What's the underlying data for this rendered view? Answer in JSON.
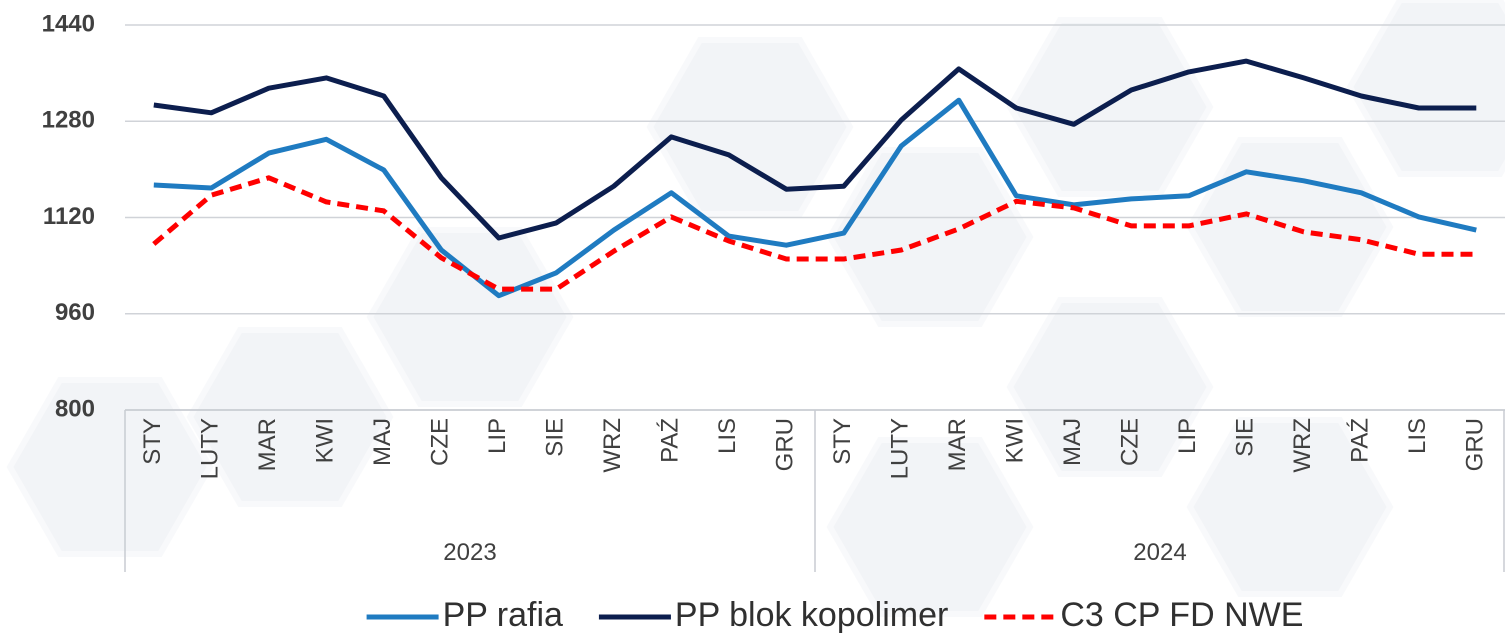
{
  "chart_data": {
    "type": "line",
    "categories": [
      "STY",
      "LUTY",
      "MAR",
      "KWI",
      "MAJ",
      "CZE",
      "LIP",
      "SIE",
      "WRZ",
      "PAŹ",
      "LIS",
      "GRU",
      "STY",
      "LUTY",
      "MAR",
      "KWI",
      "MAJ",
      "CZE",
      "LIP",
      "SIE",
      "WRZ",
      "PAŹ",
      "LIS",
      "GRU"
    ],
    "category_groups": [
      "2023",
      "2024"
    ],
    "series": [
      {
        "name": "PP rafia",
        "color": "#1f7bc1",
        "line_style": "solid",
        "values": [
          1174,
          1169,
          1227,
          1250,
          1199,
          1066,
          990,
          1028,
          1099,
          1161,
          1089,
          1074,
          1094,
          1239,
          1315,
          1156,
          1141,
          1151,
          1156,
          1196,
          1181,
          1161,
          1121,
          1099
        ]
      },
      {
        "name": "PP blok kopolimer",
        "color": "#0c1e4e",
        "line_style": "solid",
        "values": [
          1307,
          1294,
          1335,
          1352,
          1322,
          1186,
          1086,
          1111,
          1172,
          1254,
          1224,
          1167,
          1172,
          1282,
          1367,
          1302,
          1275,
          1332,
          1362,
          1380,
          1352,
          1322,
          1302,
          1302
        ]
      },
      {
        "name": "C3 CP FD NWE",
        "color": "#ff0000",
        "line_style": "dashed",
        "values": [
          1076,
          1157,
          1186,
          1146,
          1131,
          1053,
          1001,
          1001,
          1064,
          1121,
          1081,
          1051,
          1051,
          1066,
          1101,
          1147,
          1136,
          1106,
          1106,
          1126,
          1096,
          1083,
          1059,
          1059
        ]
      }
    ],
    "ylim": [
      800,
      1440
    ],
    "yticks": [
      800,
      960,
      1120,
      1280,
      1440
    ],
    "grid": true,
    "legend": "bottom"
  }
}
